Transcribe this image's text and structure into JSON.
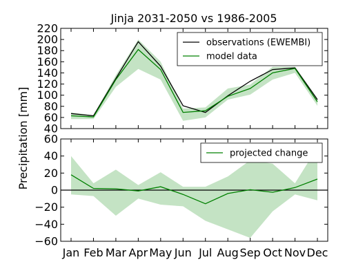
{
  "figure": {
    "title": "Jinja 2031-2050 vs 1986-2005",
    "ylabel": "Precipitation [mm]"
  },
  "colors": {
    "observations": "#000000",
    "model": "#008000",
    "band": "#93cc93",
    "zero_line": "#000000"
  },
  "chart_data": [
    {
      "type": "line",
      "categories": [
        "Jan",
        "Feb",
        "Mar",
        "Apr",
        "May",
        "Jun",
        "Jul",
        "Aug",
        "Sep",
        "Oct",
        "Nov",
        "Dec"
      ],
      "ylim": [
        40,
        220
      ],
      "yticks": [
        40,
        60,
        80,
        100,
        120,
        140,
        160,
        180,
        200,
        220
      ],
      "legend_position": "top-right",
      "grid": false,
      "series": [
        {
          "name": "observations (EWEMBI)",
          "color": "#000000",
          "values": [
            67,
            63,
            130,
            196,
            152,
            81,
            69,
            99,
            125,
            146,
            149,
            92
          ]
        },
        {
          "name": "model data",
          "color": "#008000",
          "values": [
            63,
            61,
            128,
            182,
            146,
            69,
            72,
            98,
            112,
            140,
            148,
            88
          ],
          "band_low": [
            57,
            57,
            115,
            147,
            128,
            54,
            60,
            92,
            101,
            128,
            140,
            81
          ],
          "band_high": [
            69,
            64,
            136,
            200,
            160,
            76,
            78,
            112,
            119,
            151,
            151,
            95
          ]
        }
      ]
    },
    {
      "type": "line",
      "categories": [
        "Jan",
        "Feb",
        "Mar",
        "Apr",
        "May",
        "Jun",
        "Jul",
        "Aug",
        "Sep",
        "Oct",
        "Nov",
        "Dec"
      ],
      "ylim": [
        -60,
        60
      ],
      "yticks": [
        -60,
        -40,
        -20,
        0,
        20,
        40,
        60
      ],
      "legend_position": "top-right",
      "grid": false,
      "zero_line": 0,
      "series": [
        {
          "name": "projected change",
          "color": "#008000",
          "values": [
            18,
            2,
            1.5,
            -1,
            4,
            -5,
            -16,
            -4,
            0.5,
            -2.5,
            3,
            13
          ],
          "band_low": [
            -5,
            -7,
            -30,
            -10,
            -17,
            -19,
            -36,
            -46,
            -56,
            -25,
            -5,
            -12
          ],
          "band_high": [
            40,
            8,
            24,
            6,
            21,
            4,
            4,
            16,
            35,
            31,
            8,
            50
          ]
        }
      ]
    }
  ]
}
